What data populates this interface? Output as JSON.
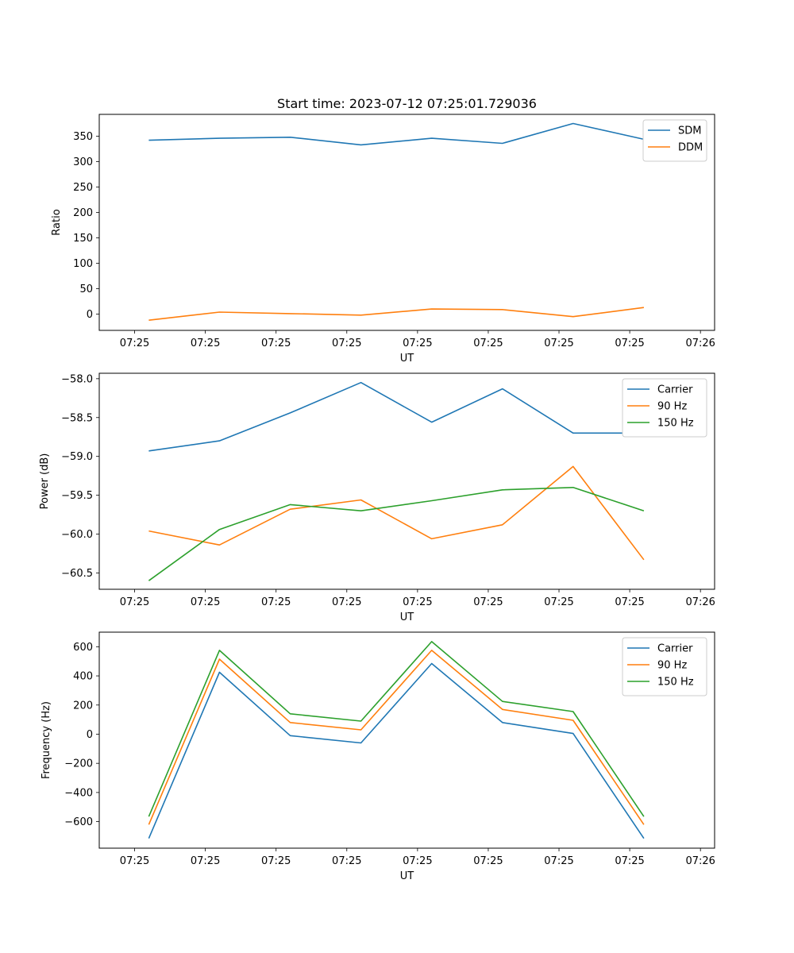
{
  "figure": {
    "title": "Start time: 2023-07-12 07:25:01.729036"
  },
  "chart_data": [
    {
      "type": "line",
      "xlabel": "UT",
      "ylabel": "Ratio",
      "x_tick_labels": [
        "07:25",
        "07:25",
        "07:25",
        "07:25",
        "07:25",
        "07:25",
        "07:25"
      ],
      "x_edge_labels": [
        "07:25",
        "07:26"
      ],
      "y_ticks": [
        0,
        50,
        100,
        150,
        200,
        250,
        300,
        350
      ],
      "ylim": [
        -32,
        393
      ],
      "legend": "top-right",
      "x": [
        1,
        2,
        3,
        4,
        5,
        6,
        7,
        8
      ],
      "series": [
        {
          "name": "SDM",
          "color": "#1f77b4",
          "values": [
            342,
            346,
            348,
            333,
            346,
            336,
            375,
            344
          ]
        },
        {
          "name": "DDM",
          "color": "#ff7f0e",
          "values": [
            -12,
            4,
            1,
            -2,
            10,
            9,
            -5,
            13
          ]
        }
      ]
    },
    {
      "type": "line",
      "xlabel": "UT",
      "ylabel": "Power (dB)",
      "x_tick_labels": [
        "07:25",
        "07:25",
        "07:25",
        "07:25",
        "07:25",
        "07:25",
        "07:25"
      ],
      "x_edge_labels": [
        "07:25",
        "07:26"
      ],
      "y_ticks": [
        -60.5,
        -60.0,
        -59.5,
        -59.0,
        -58.5,
        -58.0
      ],
      "y_tick_labels": [
        "−60.5",
        "−60.0",
        "−59.5",
        "−59.0",
        "−58.5",
        "−58.0"
      ],
      "ylim": [
        -60.71,
        -57.93
      ],
      "legend": "top-right",
      "x": [
        1,
        2,
        3,
        4,
        5,
        6,
        7,
        8
      ],
      "series": [
        {
          "name": "Carrier",
          "color": "#1f77b4",
          "values": [
            -58.93,
            -58.8,
            -58.44,
            -58.05,
            -58.56,
            -58.13,
            -58.7,
            -58.7
          ]
        },
        {
          "name": "90 Hz",
          "color": "#ff7f0e",
          "values": [
            -59.96,
            -60.14,
            -59.68,
            -59.56,
            -60.06,
            -59.88,
            -59.13,
            -60.33
          ]
        },
        {
          "name": "150 Hz",
          "color": "#2ca02c",
          "values": [
            -60.6,
            -59.94,
            -59.62,
            -59.7,
            -59.57,
            -59.43,
            -59.4,
            -59.7
          ]
        }
      ]
    },
    {
      "type": "line",
      "xlabel": "UT",
      "ylabel": "Frequency (Hz)",
      "x_tick_labels": [
        "07:25",
        "07:25",
        "07:25",
        "07:25",
        "07:25",
        "07:25",
        "07:25"
      ],
      "x_edge_labels": [
        "07:25",
        "07:26"
      ],
      "y_ticks": [
        -600,
        -400,
        -200,
        0,
        200,
        400,
        600
      ],
      "y_tick_labels": [
        "−600",
        "−400",
        "−200",
        "0",
        "200",
        "400",
        "600"
      ],
      "ylim": [
        -782,
        700
      ],
      "legend": "top-right",
      "x": [
        1,
        2,
        3,
        4,
        5,
        6,
        7,
        8
      ],
      "series": [
        {
          "name": "Carrier",
          "color": "#1f77b4",
          "values": [
            -715,
            425,
            -10,
            -60,
            485,
            80,
            5,
            -715
          ]
        },
        {
          "name": "90 Hz",
          "color": "#ff7f0e",
          "values": [
            -620,
            515,
            80,
            30,
            575,
            170,
            95,
            -620
          ]
        },
        {
          "name": "150 Hz",
          "color": "#2ca02c",
          "values": [
            -565,
            575,
            140,
            90,
            635,
            225,
            155,
            -565
          ]
        }
      ]
    }
  ]
}
